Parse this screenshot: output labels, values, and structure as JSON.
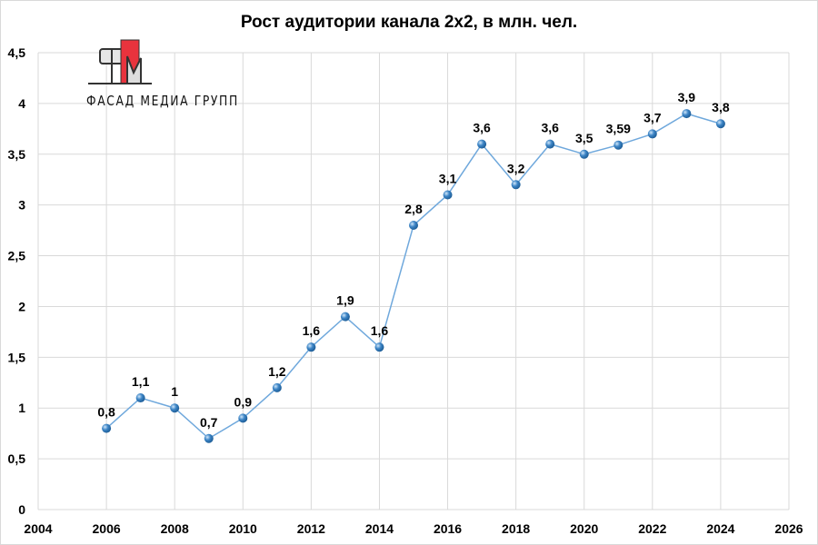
{
  "chart_data": {
    "type": "line",
    "title": "Рост аудитории канала 2х2, в млн. чел.",
    "xlabel": "",
    "ylabel": "",
    "xlim": [
      2004,
      2026
    ],
    "ylim": [
      0,
      4.5
    ],
    "x_ticks": [
      "2004",
      "2006",
      "2008",
      "2010",
      "2012",
      "2014",
      "2016",
      "2018",
      "2020",
      "2022",
      "2024",
      "2026"
    ],
    "y_ticks": [
      "0",
      "0,5",
      "1",
      "1,5",
      "2",
      "2,5",
      "3",
      "3,5",
      "4",
      "4,5"
    ],
    "grid": true,
    "legend": "none",
    "line_color": "#6fa8dc",
    "marker_color": "#3d85c6",
    "series": [
      {
        "x": [
          2006,
          2007,
          2008,
          2009,
          2010,
          2011,
          2012,
          2013,
          2014,
          2015,
          2016,
          2017,
          2018,
          2019,
          2020,
          2021,
          2022,
          2023,
          2024
        ],
        "values": [
          0.8,
          1.1,
          1,
          0.7,
          0.9,
          1.2,
          1.6,
          1.9,
          1.6,
          2.8,
          3.1,
          3.6,
          3.2,
          3.6,
          3.5,
          3.59,
          3.7,
          3.9,
          3.8
        ],
        "labels": [
          "0,8",
          "1,1",
          "1",
          "0,7",
          "0,9",
          "1,2",
          "1,6",
          "1,9",
          "1,6",
          "2,8",
          "3,1",
          "3,6",
          "3,2",
          "3,6",
          "3,5",
          "3,59",
          "3,7",
          "3,9",
          "3,8"
        ]
      }
    ]
  },
  "logo": {
    "text": "ФАСАД МЕДИА ГРУПП",
    "accent": "#e8333d"
  }
}
